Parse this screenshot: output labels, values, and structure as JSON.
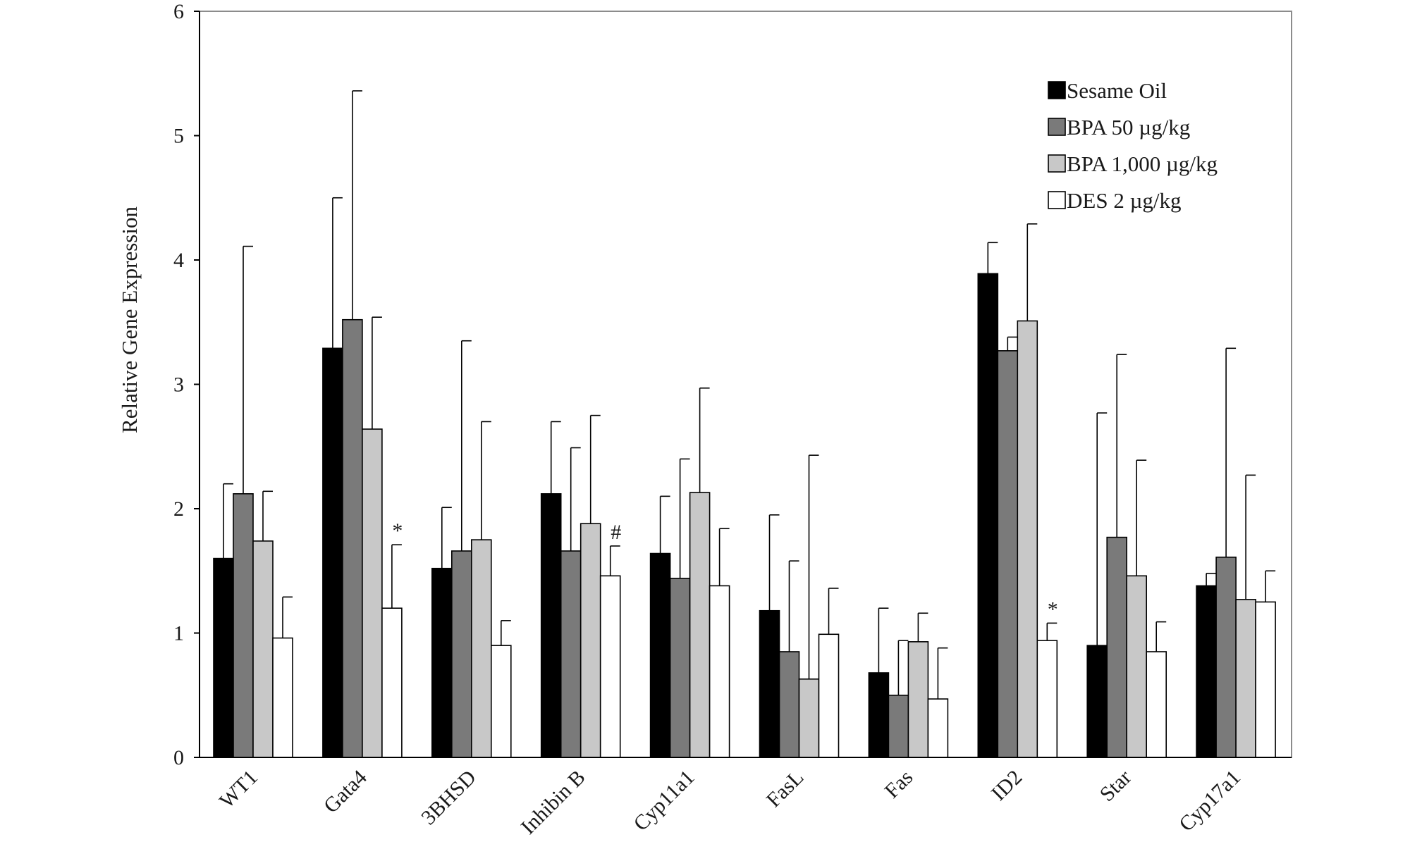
{
  "chart_data": {
    "type": "bar",
    "title": "",
    "xlabel": "",
    "ylabel": "Relative Gene Expression",
    "ylim": [
      0,
      6
    ],
    "yticks": [
      0,
      1,
      2,
      3,
      4,
      5,
      6
    ],
    "grid": false,
    "legend_position": "top-right",
    "categories": [
      "WT1",
      "Gata4",
      "3BHSD",
      "Inhibin B",
      "Cyp11a1",
      "FasL",
      "Fas",
      "ID2",
      "Star",
      "Cyp17a1"
    ],
    "series": [
      {
        "name": "Sesame Oil",
        "color": "#000000",
        "values": [
          1.6,
          3.29,
          1.52,
          2.12,
          1.64,
          1.18,
          0.68,
          3.89,
          0.9,
          1.38
        ],
        "errors": [
          0.6,
          1.21,
          0.49,
          0.58,
          0.46,
          0.77,
          0.52,
          0.25,
          1.87,
          0.1
        ]
      },
      {
        "name": "BPA 50 µg/kg",
        "color": "#7a7a7a",
        "values": [
          2.12,
          3.52,
          1.66,
          1.66,
          1.44,
          0.85,
          0.5,
          3.27,
          1.77,
          1.61
        ],
        "errors": [
          1.99,
          1.84,
          1.69,
          0.83,
          0.96,
          0.73,
          0.44,
          0.11,
          1.47,
          1.68
        ]
      },
      {
        "name": "BPA 1,000 µg/kg",
        "color": "#c8c8c8",
        "values": [
          1.74,
          2.64,
          1.75,
          1.88,
          2.13,
          0.63,
          0.93,
          3.51,
          1.46,
          1.27
        ],
        "errors": [
          0.4,
          0.9,
          0.95,
          0.87,
          0.84,
          1.8,
          0.23,
          0.78,
          0.93,
          1.0
        ]
      },
      {
        "name": "DES 2 µg/kg",
        "color": "#ffffff",
        "values": [
          0.96,
          1.2,
          0.9,
          1.46,
          1.38,
          0.99,
          0.47,
          0.94,
          0.85,
          1.25
        ],
        "errors": [
          0.33,
          0.51,
          0.2,
          0.24,
          0.46,
          0.37,
          0.41,
          0.14,
          0.24,
          0.25
        ]
      }
    ],
    "annotations": [
      {
        "text": "*",
        "category": "Gata4",
        "series": 3
      },
      {
        "text": "#",
        "category": "Inhibin B",
        "series": 3
      },
      {
        "text": "*",
        "category": "ID2",
        "series": 3
      }
    ]
  }
}
